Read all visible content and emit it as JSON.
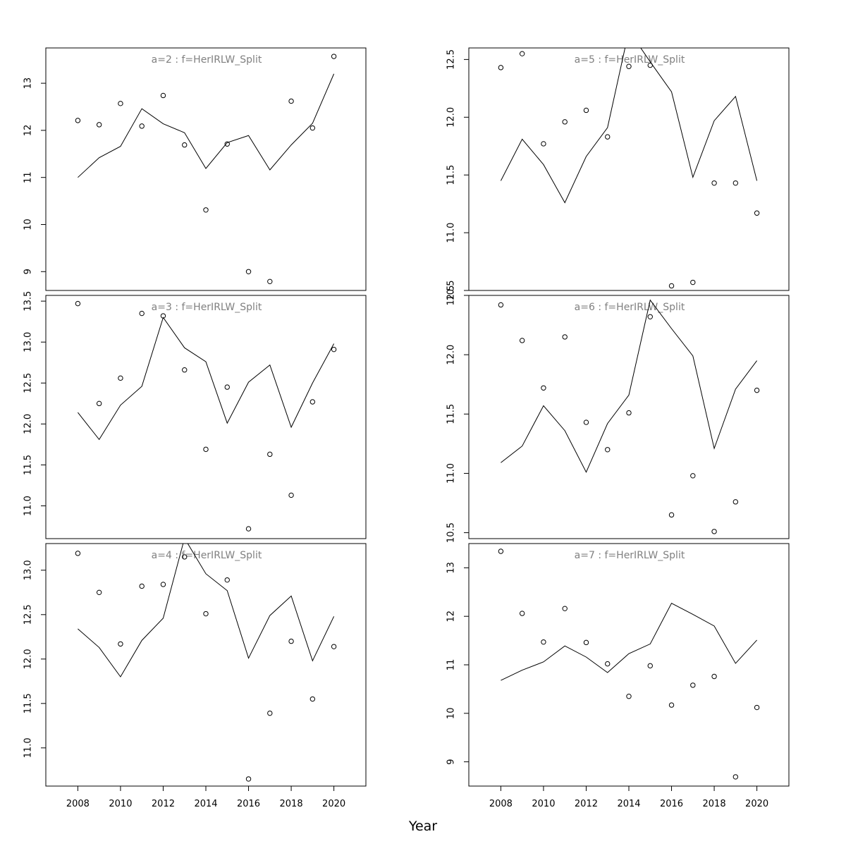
{
  "figure": {
    "xlabel": "Year",
    "line_color": "#000000",
    "title_color": "#808080"
  },
  "chart_data": [
    {
      "type": "line",
      "title": "a=2 : f=HerIRLW_Split",
      "x": [
        2008,
        2009,
        2010,
        2011,
        2012,
        2013,
        2014,
        2015,
        2016,
        2017,
        2018,
        2019,
        2020
      ],
      "series": [
        {
          "kind": "points",
          "values": [
            12.21,
            12.12,
            12.57,
            12.09,
            12.74,
            11.69,
            10.31,
            11.71,
            9.0,
            8.79,
            12.62,
            12.05,
            13.57
          ]
        },
        {
          "kind": "line",
          "values": [
            11.0,
            11.42,
            11.66,
            12.46,
            12.14,
            11.95,
            11.19,
            11.74,
            11.89,
            11.16,
            11.69,
            12.15,
            13.2
          ]
        }
      ],
      "xlim": [
        2006.5,
        2021.5
      ],
      "ylim": [
        8.6,
        13.75
      ],
      "yticks": [
        9,
        10,
        11,
        12,
        13
      ],
      "xticks": [
        2008,
        2010,
        2012,
        2014,
        2016,
        2018,
        2020
      ],
      "show_x_axis": false
    },
    {
      "type": "line",
      "title": "a=3 : f=HerIRLW_Split",
      "x": [
        2008,
        2009,
        2010,
        2011,
        2012,
        2013,
        2014,
        2015,
        2016,
        2017,
        2018,
        2019,
        2020
      ],
      "series": [
        {
          "kind": "points",
          "values": [
            13.47,
            12.25,
            12.56,
            13.35,
            13.32,
            12.66,
            11.69,
            12.45,
            10.72,
            11.63,
            11.13,
            12.27,
            12.91
          ]
        },
        {
          "kind": "line",
          "values": [
            12.14,
            11.81,
            12.23,
            12.46,
            13.3,
            12.93,
            12.76,
            12.01,
            12.51,
            12.72,
            11.96,
            12.5,
            12.98
          ]
        }
      ],
      "xlim": [
        2006.5,
        2021.5
      ],
      "ylim": [
        10.6,
        13.57
      ],
      "yticks": [
        11.0,
        11.5,
        12.0,
        12.5,
        13.0,
        13.5
      ],
      "ytick_labels": [
        "11.0",
        "11.5",
        "12.0",
        "12.5",
        "13.0",
        "13.5"
      ],
      "xticks": [
        2008,
        2010,
        2012,
        2014,
        2016,
        2018,
        2020
      ],
      "show_x_axis": false
    },
    {
      "type": "line",
      "title": "a=4 : f=HerIRLW_Split",
      "x": [
        2008,
        2009,
        2010,
        2011,
        2012,
        2013,
        2014,
        2015,
        2016,
        2017,
        2018,
        2019,
        2020
      ],
      "series": [
        {
          "kind": "points",
          "values": [
            13.19,
            12.75,
            12.17,
            12.82,
            12.84,
            13.15,
            12.51,
            12.89,
            10.65,
            11.39,
            12.2,
            11.55,
            12.14
          ]
        },
        {
          "kind": "line",
          "values": [
            12.34,
            12.13,
            11.8,
            12.21,
            12.46,
            13.36,
            12.96,
            12.77,
            12.01,
            12.49,
            12.71,
            11.98,
            12.48
          ]
        }
      ],
      "xlim": [
        2006.5,
        2021.5
      ],
      "ylim": [
        10.57,
        13.3
      ],
      "yticks": [
        11.0,
        11.5,
        12.0,
        12.5,
        13.0
      ],
      "ytick_labels": [
        "11.0",
        "11.5",
        "12.0",
        "12.5",
        "13.0"
      ],
      "xticks": [
        2008,
        2010,
        2012,
        2014,
        2016,
        2018,
        2020
      ],
      "show_x_axis": true
    },
    {
      "type": "line",
      "title": "a=5 : f=HerIRLW_Split",
      "x": [
        2008,
        2009,
        2010,
        2011,
        2012,
        2013,
        2014,
        2015,
        2016,
        2017,
        2018,
        2019,
        2020
      ],
      "series": [
        {
          "kind": "points",
          "values": [
            12.43,
            12.55,
            11.77,
            11.96,
            12.06,
            11.83,
            12.44,
            12.45,
            10.54,
            10.57,
            11.43,
            11.43,
            11.17
          ]
        },
        {
          "kind": "line",
          "values": [
            11.45,
            11.81,
            11.59,
            11.26,
            11.66,
            11.91,
            12.75,
            12.48,
            12.22,
            11.48,
            11.97,
            12.18,
            11.45
          ]
        }
      ],
      "xlim": [
        2006.5,
        2021.5
      ],
      "ylim": [
        10.5,
        12.6
      ],
      "yticks": [
        10.5,
        11.0,
        11.5,
        12.0,
        12.5
      ],
      "ytick_labels": [
        "10.5",
        "11.0",
        "11.5",
        "12.0",
        "12.5"
      ],
      "xticks": [
        2008,
        2010,
        2012,
        2014,
        2016,
        2018,
        2020
      ],
      "show_x_axis": false
    },
    {
      "type": "line",
      "title": "a=6 : f=HerIRLW_Split",
      "x": [
        2008,
        2009,
        2010,
        2011,
        2012,
        2013,
        2014,
        2015,
        2016,
        2017,
        2018,
        2019,
        2020
      ],
      "series": [
        {
          "kind": "points",
          "values": [
            12.42,
            12.12,
            11.72,
            12.15,
            11.43,
            11.2,
            11.51,
            12.32,
            10.65,
            10.98,
            10.51,
            10.76,
            11.7
          ]
        },
        {
          "kind": "line",
          "values": [
            11.09,
            11.23,
            11.57,
            11.36,
            11.01,
            11.42,
            11.66,
            12.46,
            12.22,
            11.99,
            11.21,
            11.71,
            11.95
          ]
        }
      ],
      "xlim": [
        2006.5,
        2021.5
      ],
      "ylim": [
        10.45,
        12.5
      ],
      "yticks": [
        10.5,
        11.0,
        11.5,
        12.0,
        12.5
      ],
      "ytick_labels": [
        "10.5",
        "11.0",
        "11.5",
        "12.0",
        "12.5"
      ],
      "xticks": [
        2008,
        2010,
        2012,
        2014,
        2016,
        2018,
        2020
      ],
      "show_x_axis": false
    },
    {
      "type": "line",
      "title": "a=7 : f=HerIRLW_Split",
      "x": [
        2008,
        2009,
        2010,
        2011,
        2012,
        2013,
        2014,
        2015,
        2016,
        2017,
        2018,
        2019,
        2020
      ],
      "series": [
        {
          "kind": "points",
          "values": [
            13.34,
            12.06,
            11.47,
            12.16,
            11.46,
            11.02,
            10.35,
            10.98,
            10.17,
            10.58,
            10.76,
            8.69,
            10.12
          ]
        },
        {
          "kind": "line",
          "values": [
            10.68,
            10.89,
            11.06,
            11.39,
            11.16,
            10.84,
            11.23,
            11.43,
            12.27,
            12.04,
            11.8,
            11.03,
            11.51
          ]
        }
      ],
      "xlim": [
        2006.5,
        2021.5
      ],
      "ylim": [
        8.5,
        13.5
      ],
      "yticks": [
        9,
        10,
        11,
        12,
        13
      ],
      "xticks": [
        2008,
        2010,
        2012,
        2014,
        2016,
        2018,
        2020
      ],
      "show_x_axis": true
    }
  ]
}
